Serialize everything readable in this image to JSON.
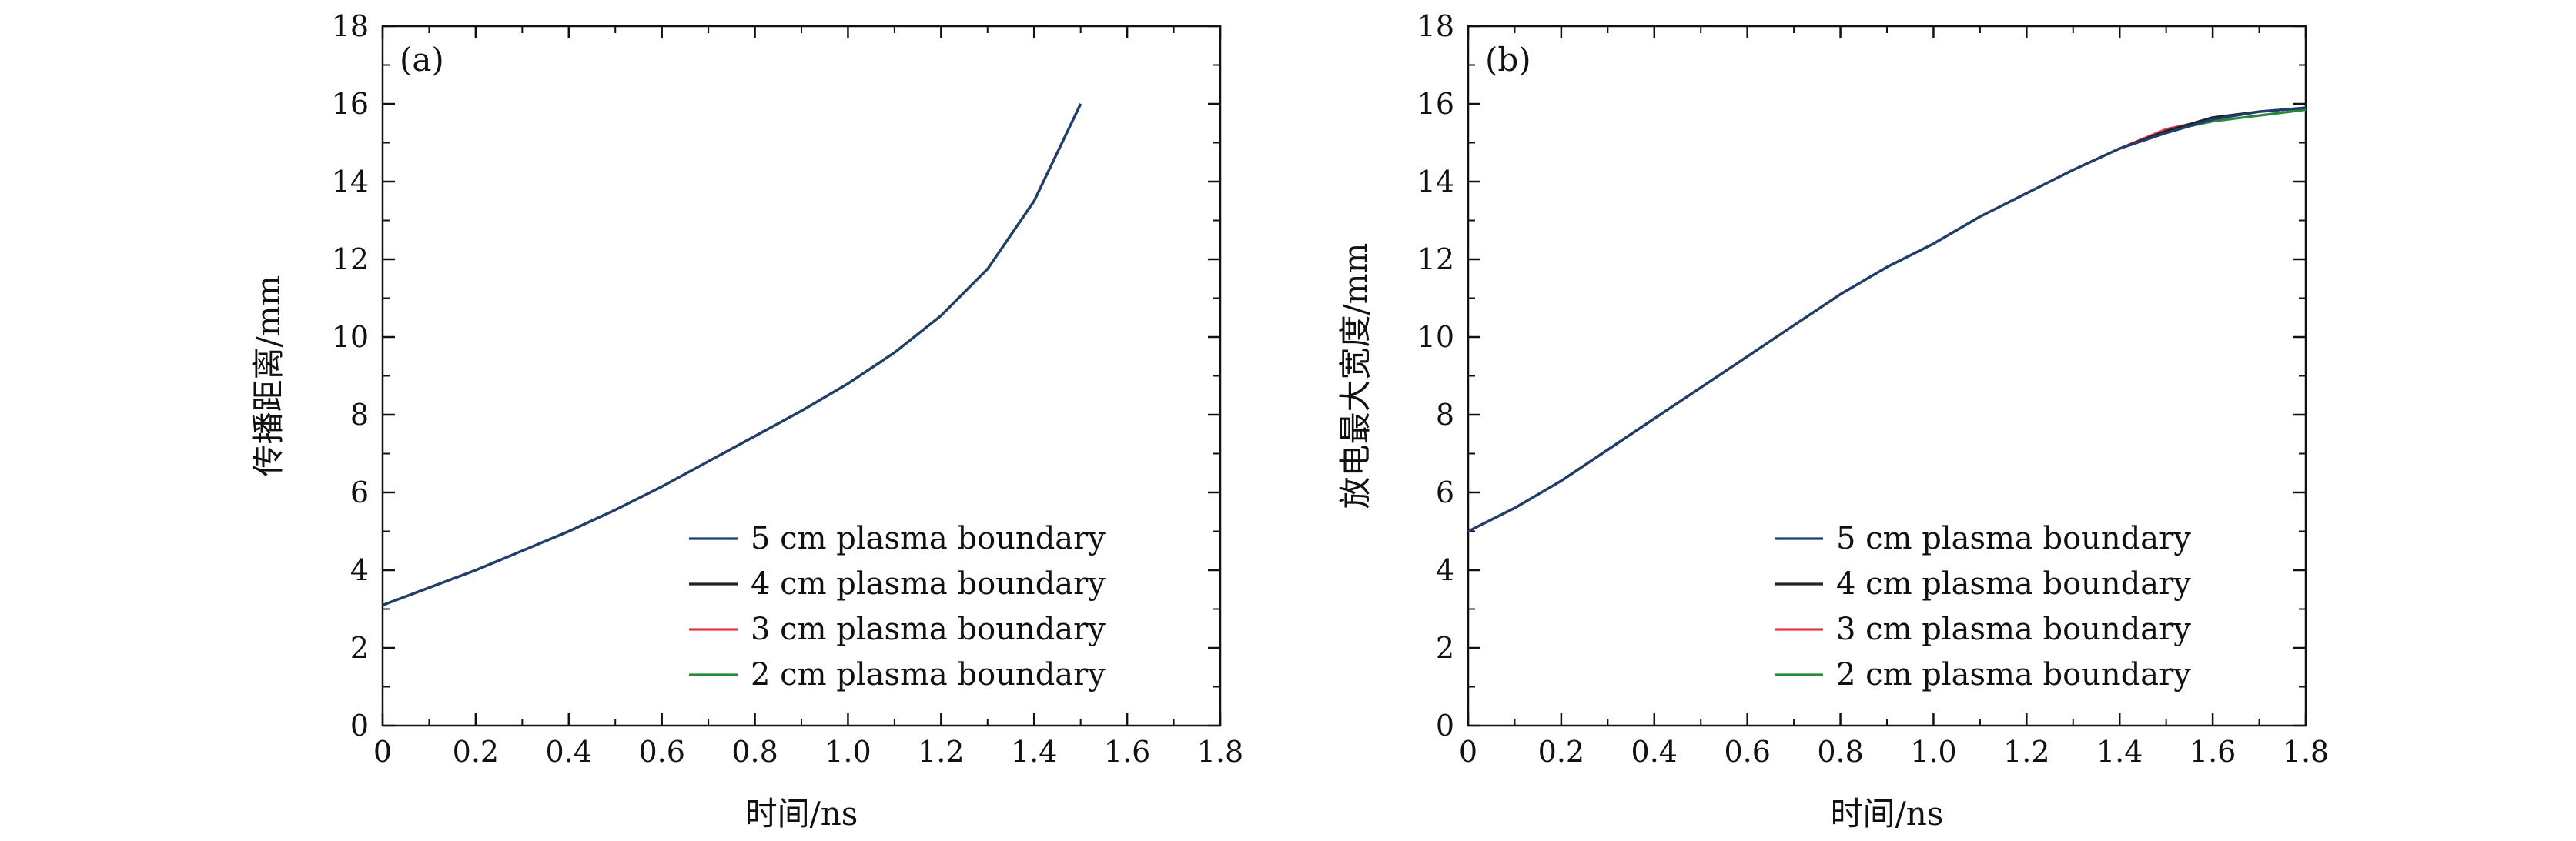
{
  "chart_data": [
    {
      "type": "line",
      "panel_label": "(a)",
      "xlabel": "时间/ns",
      "ylabel": "传播距离/mm",
      "xlim": [
        0,
        1.8
      ],
      "ylim": [
        0,
        18
      ],
      "xticks": [
        "0",
        "0.2",
        "0.4",
        "0.6",
        "0.8",
        "1.0",
        "1.2",
        "1.4",
        "1.6",
        "1.8"
      ],
      "yticks": [
        "0",
        "2",
        "4",
        "6",
        "8",
        "10",
        "12",
        "14",
        "16",
        "18"
      ],
      "legend_position": "bottom-right",
      "x": [
        0,
        0.1,
        0.2,
        0.3,
        0.4,
        0.5,
        0.6,
        0.7,
        0.8,
        0.9,
        1.0,
        1.1,
        1.2,
        1.3,
        1.4,
        1.5
      ],
      "series": [
        {
          "name": "5 cm plasma boundary",
          "color": "#1f3f6e",
          "values": [
            3.1,
            3.55,
            4.0,
            4.5,
            5.0,
            5.55,
            6.15,
            6.8,
            7.45,
            8.1,
            8.8,
            9.6,
            10.55,
            11.75,
            13.5,
            16.0
          ]
        },
        {
          "name": "4 cm plasma boundary",
          "color": "#222222",
          "values": [
            3.1,
            3.55,
            4.0,
            4.5,
            5.0,
            5.55,
            6.15,
            6.8,
            7.45,
            8.1,
            8.8,
            9.6,
            10.55,
            11.75,
            13.5,
            16.0
          ]
        },
        {
          "name": "3 cm plasma boundary",
          "color": "#e8364f",
          "values": [
            3.1,
            3.55,
            4.0,
            4.5,
            5.0,
            5.55,
            6.15,
            6.8,
            7.45,
            8.1,
            8.8,
            9.6,
            10.55,
            11.75,
            13.5,
            16.0
          ]
        },
        {
          "name": "2 cm plasma boundary",
          "color": "#2a8a3c",
          "values": [
            3.1,
            3.55,
            4.0,
            4.5,
            5.0,
            5.55,
            6.15,
            6.8,
            7.45,
            8.1,
            8.8,
            9.6,
            10.55,
            11.75,
            13.5,
            16.0
          ]
        }
      ]
    },
    {
      "type": "line",
      "panel_label": "(b)",
      "xlabel": "时间/ns",
      "ylabel": "放电最大宽度/mm",
      "xlim": [
        0,
        1.8
      ],
      "ylim": [
        0,
        18
      ],
      "xticks": [
        "0",
        "0.2",
        "0.4",
        "0.6",
        "0.8",
        "1.0",
        "1.2",
        "1.4",
        "1.6",
        "1.8"
      ],
      "yticks": [
        "0",
        "2",
        "4",
        "6",
        "8",
        "10",
        "12",
        "14",
        "16",
        "18"
      ],
      "legend_position": "bottom-right",
      "x": [
        0,
        0.1,
        0.2,
        0.3,
        0.4,
        0.5,
        0.6,
        0.7,
        0.8,
        0.9,
        1.0,
        1.1,
        1.2,
        1.3,
        1.4,
        1.5,
        1.6,
        1.7,
        1.8
      ],
      "series": [
        {
          "name": "5 cm plasma boundary",
          "color": "#1f3f6e",
          "values": [
            5.0,
            5.6,
            6.3,
            7.1,
            7.9,
            8.7,
            9.5,
            10.3,
            11.1,
            11.8,
            12.4,
            13.1,
            13.7,
            14.3,
            14.85,
            15.25,
            15.6,
            15.8,
            15.9
          ]
        },
        {
          "name": "4 cm plasma boundary",
          "color": "#222222",
          "values": [
            5.0,
            5.6,
            6.3,
            7.1,
            7.9,
            8.7,
            9.5,
            10.3,
            11.1,
            11.8,
            12.4,
            13.1,
            13.7,
            14.3,
            14.85,
            15.3,
            15.65,
            15.8,
            15.9
          ]
        },
        {
          "name": "3 cm plasma boundary",
          "color": "#e8364f",
          "values": [
            5.0,
            5.6,
            6.3,
            7.1,
            7.9,
            8.7,
            9.5,
            10.3,
            11.1,
            11.8,
            12.4,
            13.1,
            13.7,
            14.3,
            14.85,
            15.35,
            15.6,
            15.8,
            15.9
          ]
        },
        {
          "name": "2 cm plasma boundary",
          "color": "#2a8a3c",
          "values": [
            5.0,
            5.6,
            6.3,
            7.1,
            7.9,
            8.7,
            9.5,
            10.3,
            11.1,
            11.8,
            12.4,
            13.1,
            13.7,
            14.3,
            14.85,
            15.3,
            15.55,
            15.7,
            15.85
          ]
        }
      ]
    }
  ]
}
